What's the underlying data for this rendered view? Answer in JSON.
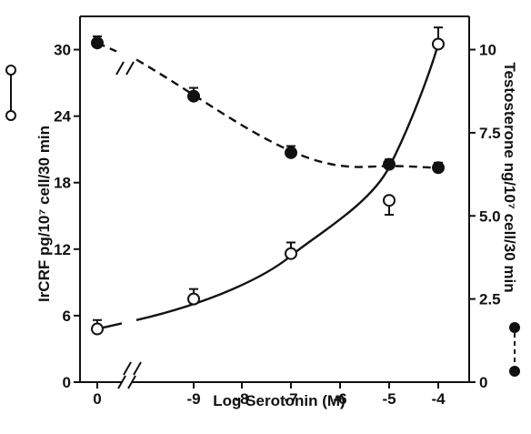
{
  "chart_data": {
    "type": "scatter",
    "xlabel": "Log Serotonin (M)",
    "ylabel_left": "IrCRF pg/10⁷ cell/30 min",
    "ylabel_right": "Testosterone ng/10⁷ cell/30 min",
    "x_ticks": [
      "0",
      "-9",
      "-8",
      "-7",
      "-6",
      "-5",
      "-4"
    ],
    "y_left_ticks": [
      "0",
      "6",
      "12",
      "18",
      "24",
      "30"
    ],
    "y_right_ticks": [
      "0",
      "2.5",
      "5.0",
      "7.5",
      "10"
    ],
    "ylim_left": [
      0,
      33
    ],
    "ylim_right": [
      0,
      11
    ],
    "axis_break": "between 0 and -9 on x-axis",
    "grid": false,
    "series": [
      {
        "marker": "open-circle",
        "line": "solid",
        "axis": "left",
        "x": [
          "0",
          "-9",
          "-7",
          "-5",
          "-4"
        ],
        "y": [
          4.8,
          7.5,
          11.6,
          16.4,
          30.5
        ],
        "err": [
          0.8,
          0.9,
          1.0,
          1.3,
          1.5
        ]
      },
      {
        "marker": "filled-circle",
        "line": "dashed",
        "axis": "right",
        "x": [
          "0",
          "-9",
          "-7",
          "-5",
          "-4"
        ],
        "y": [
          10.2,
          8.6,
          6.9,
          6.55,
          6.45
        ],
        "err": [
          0.2,
          0.25,
          0.2,
          0.15,
          0.15
        ]
      }
    ]
  }
}
